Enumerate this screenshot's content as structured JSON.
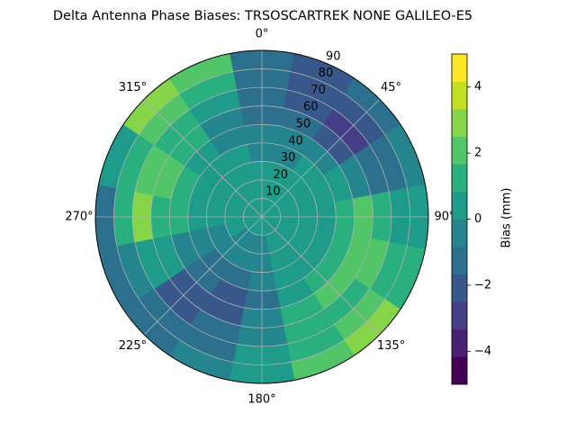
{
  "chart_data": {
    "type": "polar_contour",
    "title": "Delta Antenna Phase Biases: TRSOSCARTREK    NONE GALILEO-E5",
    "colorbar_label": "Bias (mm)",
    "azimuth": [
      0,
      22.5,
      45,
      67.5,
      90,
      112.5,
      135,
      157.5,
      180,
      202.5,
      225,
      247.5,
      270,
      292.5,
      315,
      337.5
    ],
    "zenith": [
      5,
      15,
      25,
      35,
      45,
      55,
      65,
      75,
      85
    ],
    "z": [
      [
        0.3,
        0.3,
        0.2,
        -0.3,
        -0.5,
        -1.2,
        -1.5,
        -1.2,
        -1.0
      ],
      [
        0.3,
        0.2,
        0.1,
        -0.2,
        -0.8,
        -1.5,
        -2.0,
        -2.5,
        -1.8
      ],
      [
        0.3,
        0.5,
        0.8,
        0.5,
        -0.5,
        -2.2,
        -2.8,
        -2.5,
        -1.5
      ],
      [
        0.3,
        0.5,
        0.8,
        0.8,
        0.2,
        -0.8,
        -1.5,
        -1.0,
        -0.5
      ],
      [
        0.3,
        0.4,
        0.5,
        0.8,
        1.2,
        1.8,
        1.5,
        0.8,
        0.3
      ],
      [
        0.2,
        0.3,
        0.5,
        0.8,
        1.5,
        2.0,
        1.8,
        1.5,
        1.0
      ],
      [
        0.2,
        0.2,
        0.3,
        0.5,
        1.0,
        1.8,
        1.5,
        2.0,
        2.8
      ],
      [
        0.1,
        0.1,
        0.2,
        0.3,
        0.5,
        1.2,
        1.5,
        1.5,
        1.8
      ],
      [
        0.0,
        -0.3,
        -0.5,
        -0.8,
        -1.0,
        -0.8,
        -0.5,
        0.3,
        0.5
      ],
      [
        0.0,
        -0.3,
        -0.8,
        -1.5,
        -1.8,
        -1.8,
        -1.5,
        -1.0,
        -0.3
      ],
      [
        0.0,
        -0.2,
        -0.5,
        -1.0,
        -1.5,
        -1.8,
        -1.8,
        -1.5,
        -1.0
      ],
      [
        0.1,
        0.0,
        -0.2,
        -0.5,
        -0.3,
        0.2,
        0.5,
        -0.3,
        -1.5
      ],
      [
        0.3,
        0.5,
        0.8,
        0.8,
        1.0,
        1.5,
        2.5,
        1.5,
        -1.0
      ],
      [
        0.3,
        0.5,
        0.8,
        0.8,
        1.2,
        1.8,
        2.2,
        1.5,
        0.3
      ],
      [
        0.3,
        0.5,
        0.3,
        0.2,
        0.5,
        1.0,
        1.5,
        2.0,
        2.8
      ],
      [
        0.3,
        0.3,
        0.2,
        0.0,
        -0.3,
        -0.5,
        0.2,
        1.2,
        2.0
      ]
    ],
    "levels": [
      -5,
      -4.1667,
      -3.3333,
      -2.5,
      -1.6667,
      -0.8333,
      0,
      0.8333,
      1.6667,
      2.5,
      3.3333,
      4.1667,
      5
    ],
    "colors": [
      "#440154",
      "#482173",
      "#433e85",
      "#38588c",
      "#2d708e",
      "#25858e",
      "#1e9b8a",
      "#2ab07f",
      "#52c569",
      "#86d549",
      "#c2df23",
      "#fde725"
    ],
    "rlim": [
      0,
      90
    ],
    "rticks": [
      10,
      20,
      30,
      40,
      50,
      60,
      70,
      80,
      90
    ],
    "xticks": [
      {
        "value": 0,
        "label": "0°"
      },
      {
        "value": 45,
        "label": "45°"
      },
      {
        "value": 90,
        "label": "90°"
      },
      {
        "value": 135,
        "label": "135°"
      },
      {
        "value": 180,
        "label": "180°"
      },
      {
        "value": 225,
        "label": "225°"
      },
      {
        "value": 270,
        "label": "270°"
      },
      {
        "value": 315,
        "label": "315°"
      }
    ],
    "clim": [
      -5,
      5
    ],
    "cticks": [
      {
        "value": -4,
        "label": "−4"
      },
      {
        "value": -2,
        "label": "−2"
      },
      0,
      2,
      4
    ],
    "grid": true
  }
}
